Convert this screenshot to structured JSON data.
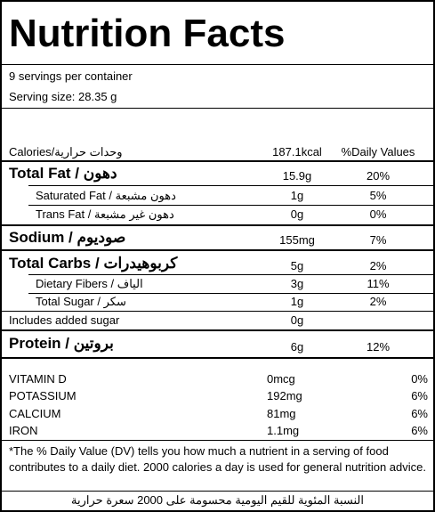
{
  "title": "Nutrition Facts",
  "servings": "9 servings per container",
  "serving_size": "Serving size: 28.35 g",
  "header": {
    "label": "Calories/وحدات حرارية",
    "amount": "187.1kcal",
    "dv": "%Daily Values"
  },
  "rows": [
    {
      "label": "Total Fat / دهون",
      "amount": "15.9g",
      "dv": "20%"
    },
    {
      "label": "Saturated Fat / دهون مشبعة",
      "amount": "1g",
      "dv": "5%"
    },
    {
      "label": "Trans Fat / دهون غير مشبعة",
      "amount": "0g",
      "dv": "0%"
    },
    {
      "label": "Sodium / صوديوم",
      "amount": "155mg",
      "dv": "7%"
    },
    {
      "label": "Total Carbs / كربوهيدرات",
      "amount": "5g",
      "dv": "2%"
    },
    {
      "label": "Dietary Fibers / الياف",
      "amount": "3g",
      "dv": "11%"
    },
    {
      "label": "Total Sugar / سكر",
      "amount": "1g",
      "dv": "2%"
    },
    {
      "label": "Includes added sugar",
      "amount": "0g"
    },
    {
      "label": "Protein / بروتين",
      "amount": "6g",
      "dv": "12%"
    }
  ],
  "vitamins": [
    {
      "name": "VITAMIN D",
      "amount": "0mcg",
      "dv": "0%"
    },
    {
      "name": "POTASSIUM",
      "amount": "192mg",
      "dv": "6%"
    },
    {
      "name": "CALCIUM",
      "amount": "81mg",
      "dv": "6%"
    },
    {
      "name": "IRON",
      "amount": "1.1mg",
      "dv": "6%"
    }
  ],
  "footnote": "*The % Daily Value (DV) tells you how much a nutrient in a serving of food contributes to a daily diet. 2000 calories a day is used for general nutrition advice.",
  "footnote_ar": "النسبة المئوية للقيم اليومية محسومة على 2000 سعرة حرارية"
}
